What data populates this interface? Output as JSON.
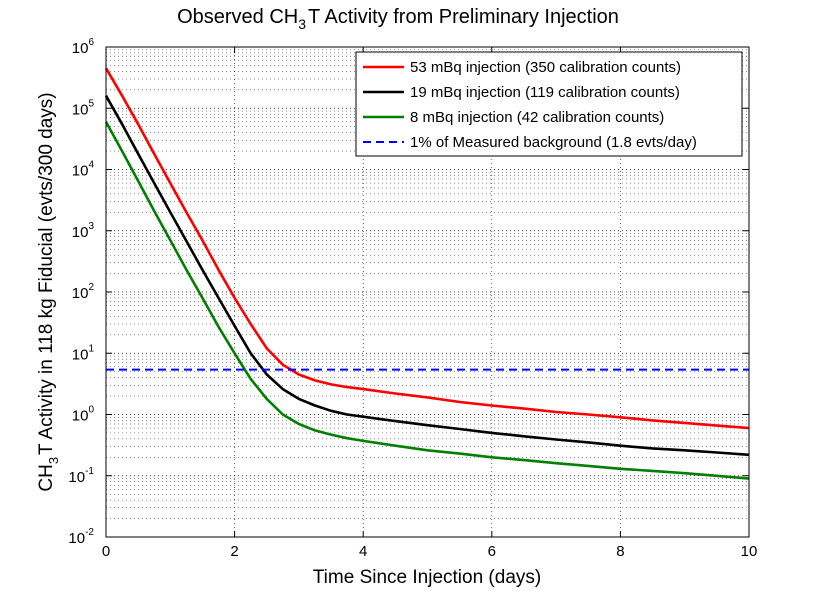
{
  "chart_data": {
    "type": "line",
    "title": {
      "prefix": "Observed CH",
      "sub": "3",
      "suffix": "T Activity from Preliminary Injection"
    },
    "xlabel": "Time Since Injection (days)",
    "ylabel": {
      "prefix": "CH",
      "sub": "3",
      "suffix": "T Activity in 118 kg Fiducial (evts/300 days)"
    },
    "xlim": [
      0,
      10
    ],
    "ylim": [
      0.01,
      1000000
    ],
    "yscale": "log",
    "grid": true,
    "legend_position": "top-right",
    "x_ticks": [
      "0",
      "2",
      "4",
      "6",
      "8",
      "10"
    ],
    "y_ticks": [
      {
        "base": "10",
        "exp": "-2"
      },
      {
        "base": "10",
        "exp": "-1"
      },
      {
        "base": "10",
        "exp": "0"
      },
      {
        "base": "10",
        "exp": "1"
      },
      {
        "base": "10",
        "exp": "2"
      },
      {
        "base": "10",
        "exp": "3"
      },
      {
        "base": "10",
        "exp": "4"
      },
      {
        "base": "10",
        "exp": "5"
      },
      {
        "base": "10",
        "exp": "6"
      }
    ],
    "series": [
      {
        "name": "53 mBq injection (350 calibration counts)",
        "color": "#ff0000",
        "style": "solid",
        "x": [
          0,
          0.25,
          0.5,
          0.75,
          1.0,
          1.25,
          1.5,
          1.75,
          2.0,
          2.25,
          2.5,
          2.75,
          3.0,
          3.25,
          3.5,
          3.75,
          4.0,
          4.5,
          5.0,
          5.5,
          6.0,
          6.5,
          7.0,
          7.5,
          8.0,
          8.5,
          9.0,
          9.5,
          10.0
        ],
        "y": [
          450000,
          160000,
          55000,
          18000,
          6000,
          2000,
          700,
          230,
          80,
          30,
          12,
          6.5,
          4.5,
          3.6,
          3.1,
          2.8,
          2.6,
          2.2,
          1.9,
          1.6,
          1.4,
          1.25,
          1.1,
          1.0,
          0.9,
          0.8,
          0.73,
          0.66,
          0.6
        ]
      },
      {
        "name": "19 mBq injection (119 calibration counts)",
        "color": "#000000",
        "style": "solid",
        "x": [
          0,
          0.25,
          0.5,
          0.75,
          1.0,
          1.25,
          1.5,
          1.75,
          2.0,
          2.25,
          2.5,
          2.75,
          3.0,
          3.25,
          3.5,
          3.75,
          4.0,
          4.5,
          5.0,
          5.5,
          6.0,
          6.5,
          7.0,
          7.5,
          8.0,
          8.5,
          9.0,
          9.5,
          10.0
        ],
        "y": [
          160000,
          55000,
          18000,
          6000,
          2000,
          680,
          230,
          80,
          28,
          10,
          4.5,
          2.6,
          1.8,
          1.4,
          1.15,
          1.0,
          0.92,
          0.78,
          0.67,
          0.58,
          0.5,
          0.44,
          0.39,
          0.35,
          0.31,
          0.28,
          0.26,
          0.24,
          0.22
        ]
      },
      {
        "name": "8 mBq injection (42 calibration counts)",
        "color": "#007f00",
        "style": "solid",
        "x": [
          0,
          0.25,
          0.5,
          0.75,
          1.0,
          1.25,
          1.5,
          1.75,
          2.0,
          2.25,
          2.5,
          2.75,
          3.0,
          3.25,
          3.5,
          3.75,
          4.0,
          4.5,
          5.0,
          5.5,
          6.0,
          6.5,
          7.0,
          7.5,
          8.0,
          8.5,
          9.0,
          9.5,
          10.0
        ],
        "y": [
          60000,
          20000,
          6500,
          2100,
          700,
          230,
          80,
          27,
          10,
          3.8,
          1.8,
          1.0,
          0.7,
          0.55,
          0.47,
          0.41,
          0.37,
          0.31,
          0.26,
          0.23,
          0.2,
          0.18,
          0.16,
          0.145,
          0.13,
          0.12,
          0.11,
          0.1,
          0.09
        ]
      },
      {
        "name": "1% of Measured background (1.8 evts/day)",
        "color": "#0000ff",
        "style": "dashed",
        "x": [
          0,
          10
        ],
        "y": [
          5.4,
          5.4
        ]
      }
    ]
  }
}
